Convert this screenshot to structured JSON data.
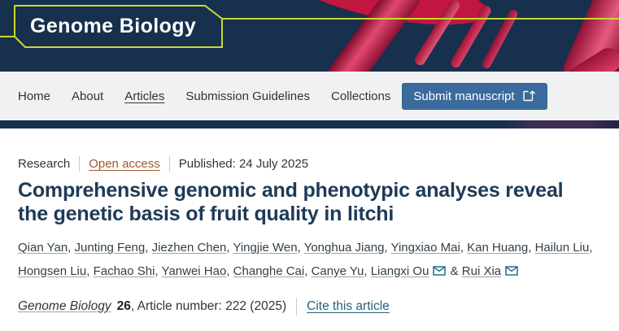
{
  "brand": {
    "name": "Genome Biology"
  },
  "header": {
    "art": "red-dna-helix-photo"
  },
  "nav": {
    "items": [
      {
        "label": "Home",
        "active": false
      },
      {
        "label": "About",
        "active": false
      },
      {
        "label": "Articles",
        "active": true
      },
      {
        "label": "Submission Guidelines",
        "active": false
      },
      {
        "label": "Collections",
        "active": false
      }
    ],
    "submit_button": {
      "label": "Submit manuscript"
    }
  },
  "article": {
    "type_label": "Research",
    "access_label": "Open access",
    "published_label": "Published: 24 July 2025",
    "title": "Comprehensive genomic and phenotypic analyses reveal the genetic basis of fruit quality in litchi",
    "authors": [
      {
        "name": "Qian Yan"
      },
      {
        "name": "Junting Feng"
      },
      {
        "name": "Jiezhen Chen"
      },
      {
        "name": "Yingjie Wen"
      },
      {
        "name": "Yonghua Jiang"
      },
      {
        "name": "Yingxiao Mai"
      },
      {
        "name": "Kan Huang"
      },
      {
        "name": "Hailun Liu"
      },
      {
        "name": "Hongsen Liu"
      },
      {
        "name": "Fachao Shi"
      },
      {
        "name": "Yanwei Hao"
      },
      {
        "name": "Changhe Cai"
      },
      {
        "name": "Canye Yu"
      },
      {
        "name": "Liangxi Ou",
        "email": true
      },
      {
        "name": "Rui Xia",
        "email": true
      }
    ],
    "journal_line": {
      "journal_name": "Genome Biology",
      "volume": "26",
      "article_info": ", Article number: 222 (2025)",
      "cite_link": "Cite this article"
    }
  },
  "colors": {
    "header_navy": "#16304e",
    "brand_lime": "#c9d92e",
    "nav_bg": "#f0f1f2",
    "button_blue": "#3a6b9c",
    "accent_bar_navy": "#14304d",
    "accent_bar_purple": "#3d2e55",
    "title_navy": "#1e3a56",
    "open_access_link": "#9c5c30",
    "author_link": "#333f48",
    "cite_link_teal": "#25607b",
    "envelope_icon": "#17637f",
    "dna_red": "#c01640"
  }
}
